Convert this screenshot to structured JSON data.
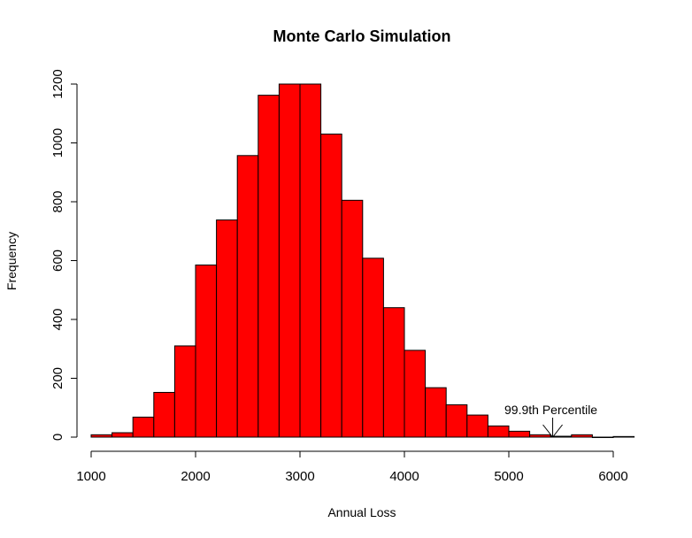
{
  "chart_data": {
    "type": "bar",
    "title": "Monte Carlo Simulation",
    "xlabel": "Annual Loss",
    "ylabel": "Frequency",
    "xlim": [
      1000,
      6200
    ],
    "ylim": [
      0,
      1200
    ],
    "bin_width": 200,
    "bin_starts": [
      1000,
      1200,
      1400,
      1600,
      1800,
      2000,
      2200,
      2400,
      2600,
      2800,
      3000,
      3200,
      3400,
      3600,
      3800,
      4000,
      4200,
      4400,
      4600,
      4800,
      5000,
      5200,
      5400,
      5600,
      5800,
      6000
    ],
    "values": [
      8,
      15,
      68,
      152,
      310,
      585,
      738,
      957,
      1162,
      1200,
      1200,
      1030,
      805,
      608,
      440,
      295,
      168,
      110,
      75,
      38,
      20,
      8,
      3,
      8,
      0,
      2
    ],
    "x_ticks": [
      1000,
      2000,
      3000,
      4000,
      5000,
      6000
    ],
    "x_tick_labels": [
      "1000",
      "2000",
      "3000",
      "4000",
      "5000",
      "6000"
    ],
    "y_ticks": [
      0,
      200,
      400,
      600,
      800,
      1000,
      1200
    ],
    "y_tick_labels": [
      "0",
      "200",
      "400",
      "600",
      "800",
      "1000",
      "1200"
    ],
    "bar_color": "#ff0000",
    "border_color": "#000000",
    "grid": false,
    "annotation": {
      "text": "99.9th Percentile",
      "x": 5420,
      "y": 0
    }
  }
}
